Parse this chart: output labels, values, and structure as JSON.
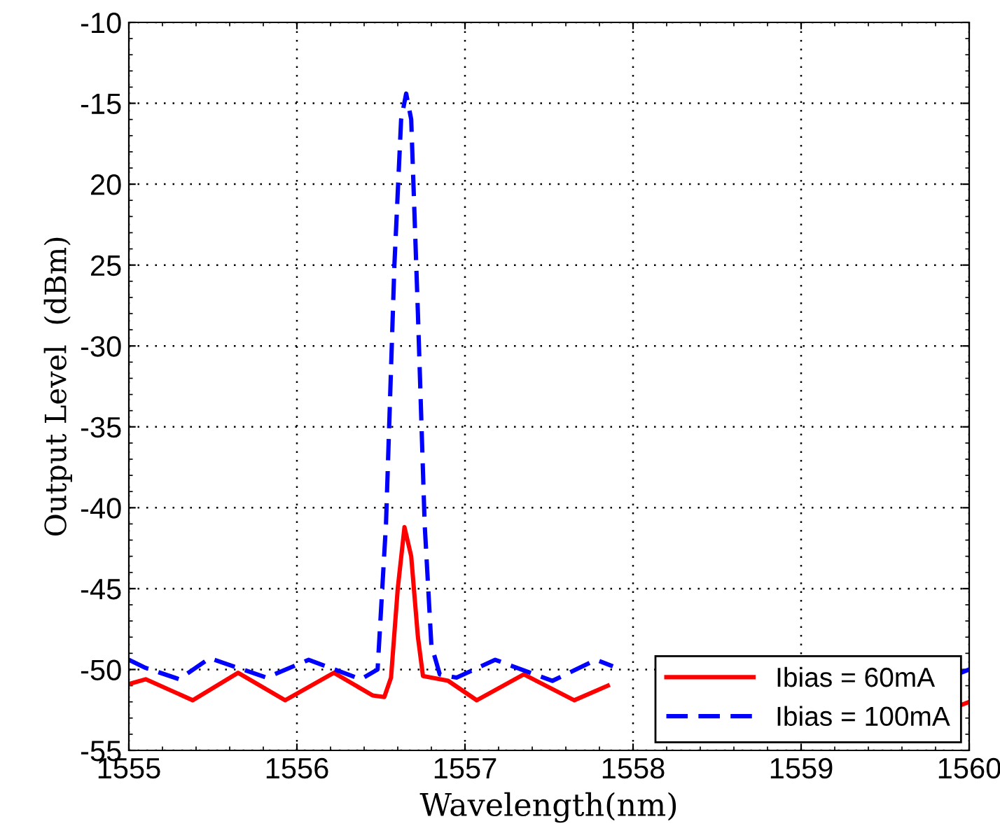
{
  "chart_data": {
    "type": "line",
    "xlabel": "Wavelength(nm)",
    "ylabel": "Output Level  (dBm)",
    "xlim": [
      1555,
      1560
    ],
    "xticks": [
      1555,
      1556,
      1557,
      1558,
      1559,
      1560
    ],
    "ylim": [
      -55,
      -10
    ],
    "yticks": [
      -55,
      -50,
      -45,
      -40,
      -35,
      -30,
      {
        "value": -25,
        "label": "25"
      },
      {
        "value": -20,
        "label": "20"
      },
      -15,
      -10
    ],
    "grid": true,
    "legend": "bottom right",
    "series": [
      {
        "name": "Ibias = 60mA",
        "color": "#ff0000",
        "line_style": "solid",
        "x": [
          1555.0,
          1555.1,
          1555.38,
          1555.65,
          1555.93,
          1556.22,
          1556.45,
          1556.52,
          1556.56,
          1556.6,
          1556.64,
          1556.68,
          1556.72,
          1556.75,
          1556.9,
          1557.07,
          1557.35,
          1557.65,
          1557.85,
          1558.5,
          1559.95,
          1560.0
        ],
        "values": [
          -50.9,
          -50.6,
          -51.9,
          -50.2,
          -51.9,
          -50.2,
          -51.6,
          -51.7,
          -50.5,
          -45,
          -41.2,
          -43,
          -48,
          -50.4,
          -50.7,
          -51.9,
          -50.3,
          -51.9,
          -51.0,
          null,
          -52.2,
          -52.0
        ]
      },
      {
        "name": "Ibias = 100mA",
        "color": "#0000ff",
        "line_style": "dashed",
        "x": [
          1555.0,
          1555.1,
          1555.3,
          1555.48,
          1555.82,
          1556.07,
          1556.38,
          1556.48,
          1556.53,
          1556.58,
          1556.62,
          1556.65,
          1556.68,
          1556.72,
          1556.76,
          1556.8,
          1556.85,
          1556.95,
          1557.18,
          1557.52,
          1557.78,
          1557.88,
          1558.5,
          1559.95,
          1560.0
        ],
        "values": [
          -49.4,
          -49.9,
          -50.6,
          -49.3,
          -50.5,
          -49.4,
          -50.6,
          -50.0,
          -41,
          -25,
          -16,
          -14.4,
          -16,
          -28,
          -41,
          -48.5,
          -50.3,
          -50.5,
          -49.4,
          -50.7,
          -49.4,
          -49.8,
          null,
          -50.2,
          -50.0
        ]
      }
    ]
  }
}
